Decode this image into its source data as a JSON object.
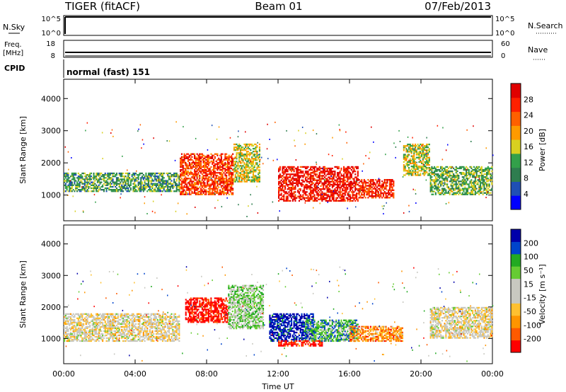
{
  "header": {
    "station": "TIGER (fitACF)",
    "beam": "Beam 01",
    "date": "07/Feb/2013"
  },
  "panels": {
    "nsky": {
      "label": "N.Sky",
      "ticks": [
        "10^5",
        "10^0"
      ],
      "right_label": "N.Search",
      "right_ticks": [
        "10^5",
        "10^0"
      ]
    },
    "freq": {
      "label_line1": "Freq.",
      "label_line2": "[MHz]",
      "ticks": [
        "18",
        "8"
      ],
      "right_label": "Nave",
      "right_ticks": [
        "60",
        "0"
      ]
    },
    "cpid": {
      "label": "CPID",
      "value": "normal (fast) 151"
    }
  },
  "colors": {
    "power": [
      "#0000ff",
      "#1f4fb4",
      "#2e7d4f",
      "#33a04a",
      "#d8d020",
      "#ff9a00",
      "#ff6000",
      "#ff2000",
      "#e00000"
    ],
    "velocity": [
      "#ff0000",
      "#ff5a00",
      "#ff9500",
      "#ffc030",
      "#c8c8c0",
      "#c8c8c0",
      "#66cc33",
      "#22aa22",
      "#0044cc",
      "#0000aa"
    ]
  },
  "chart_data": [
    {
      "type": "heatmap",
      "name": "power",
      "xlabel": "",
      "ylabel": "Slant Range [km]",
      "ylim": [
        200,
        4600
      ],
      "yticks": [
        "1000",
        "2000",
        "3000",
        "4000"
      ],
      "xticks": [
        "00:00",
        "04:00",
        "08:00",
        "12:00",
        "16:00",
        "20:00",
        "00:00"
      ],
      "colorbar_label": "Power [dB]",
      "colorbar_ticks": [
        "4",
        "8",
        "12",
        "16",
        "20",
        "24",
        "28"
      ],
      "bands": [
        {
          "t0": 0.0,
          "t1": 6.5,
          "r0": 1100,
          "r1": 1700,
          "level": 0.35
        },
        {
          "t0": 6.5,
          "t1": 9.5,
          "r0": 1000,
          "r1": 2300,
          "level": 0.8
        },
        {
          "t0": 9.5,
          "t1": 11.0,
          "r0": 1400,
          "r1": 2600,
          "level": 0.5
        },
        {
          "t0": 12.0,
          "t1": 16.5,
          "r0": 800,
          "r1": 1900,
          "level": 0.9
        },
        {
          "t0": 16.5,
          "t1": 18.5,
          "r0": 900,
          "r1": 1500,
          "level": 0.85
        },
        {
          "t0": 19.0,
          "t1": 20.5,
          "r0": 1600,
          "r1": 2600,
          "level": 0.5
        },
        {
          "t0": 20.5,
          "t1": 24.0,
          "r0": 1000,
          "r1": 1900,
          "level": 0.4
        }
      ]
    },
    {
      "type": "heatmap",
      "name": "velocity",
      "xlabel": "Time UT",
      "ylabel": "Slant Range [km]",
      "ylim": [
        200,
        4600
      ],
      "yticks": [
        "1000",
        "2000",
        "3000",
        "4000"
      ],
      "xticks": [
        "00:00",
        "04:00",
        "08:00",
        "12:00",
        "16:00",
        "20:00",
        "00:00"
      ],
      "colorbar_label": "Velocity [m s⁻¹]",
      "colorbar_ticks": [
        "200",
        "100",
        "50",
        "15",
        "-15",
        "-50",
        "-100",
        "-200"
      ],
      "bands": [
        {
          "t0": 0.0,
          "t1": 6.5,
          "r0": 900,
          "r1": 1800,
          "level": 0.45
        },
        {
          "t0": 6.8,
          "t1": 9.2,
          "r0": 1500,
          "r1": 2300,
          "level": 0.02
        },
        {
          "t0": 9.2,
          "t1": 11.2,
          "r0": 1300,
          "r1": 2700,
          "level": 0.6
        },
        {
          "t0": 11.5,
          "t1": 14.0,
          "r0": 900,
          "r1": 1800,
          "level": 0.95
        },
        {
          "t0": 13.5,
          "t1": 16.5,
          "r0": 900,
          "r1": 1600,
          "level": 0.7
        },
        {
          "t0": 12.0,
          "t1": 14.5,
          "r0": 750,
          "r1": 950,
          "level": 0.05
        },
        {
          "t0": 16.0,
          "t1": 19.0,
          "r0": 900,
          "r1": 1400,
          "level": 0.25
        },
        {
          "t0": 20.5,
          "t1": 24.0,
          "r0": 1000,
          "r1": 2000,
          "level": 0.45
        }
      ]
    }
  ]
}
